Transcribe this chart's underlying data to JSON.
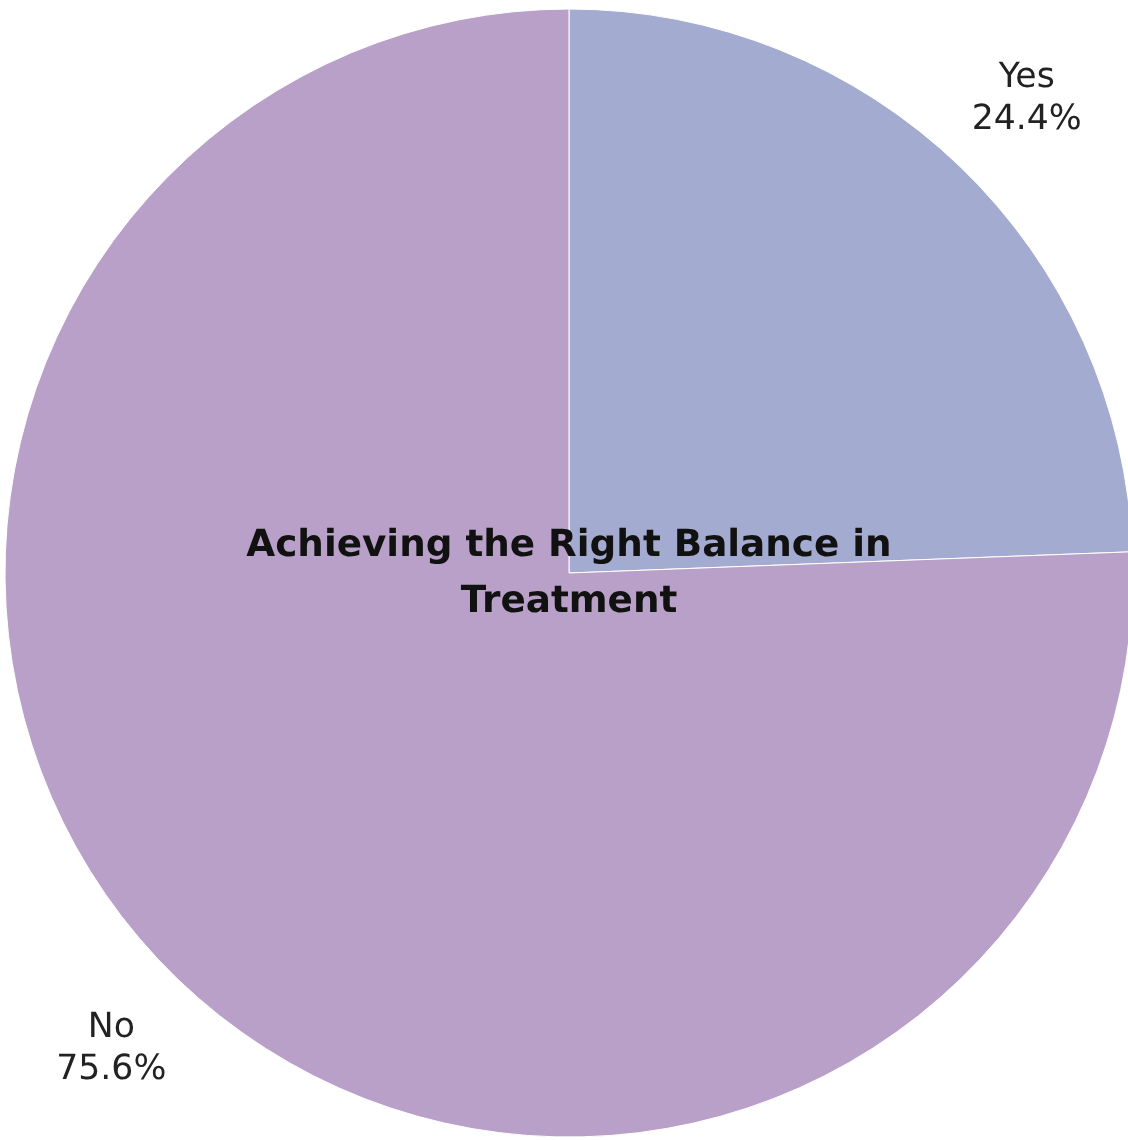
{
  "chart_data": {
    "type": "pie",
    "title": "Achieving the Right Balance in Treatment",
    "categories": [
      "Yes",
      "No"
    ],
    "values": [
      24.4,
      75.6
    ],
    "value_labels": [
      "24.4%",
      "75.6%"
    ],
    "colors": [
      "#a3abd0",
      "#b9a0c9"
    ]
  }
}
